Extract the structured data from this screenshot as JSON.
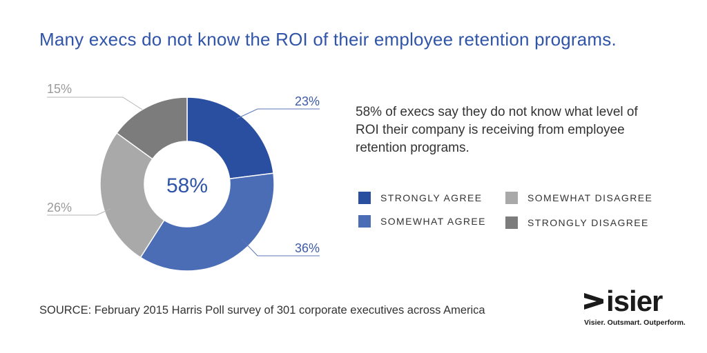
{
  "title": "Many execs do not know the ROI of their employee retention programs.",
  "description": "58% of execs say they do not know what level of ROI their company is receiving from employee retention programs.",
  "source": "SOURCE: February 2015 Harris Poll survey of 301 corporate executives across America",
  "logo": {
    "name": "isier",
    "tagline": "Visier. Outsmart. Outperform."
  },
  "chart_data": {
    "type": "pie",
    "donut": true,
    "center_label": "58%",
    "slices": [
      {
        "label": "STRONGLY AGREE",
        "value": 23,
        "display": "23%",
        "color": "#2a4fa0"
      },
      {
        "label": "SOMEWHAT AGREE",
        "value": 36,
        "display": "36%",
        "color": "#4a6db5"
      },
      {
        "label": "SOMEWHAT DISAGREE",
        "value": 26,
        "display": "26%",
        "color": "#a9a9a9"
      },
      {
        "label": "STRONGLY DISAGREE",
        "value": 15,
        "display": "15%",
        "color": "#7c7c7c"
      }
    ],
    "legend_position": "right"
  }
}
